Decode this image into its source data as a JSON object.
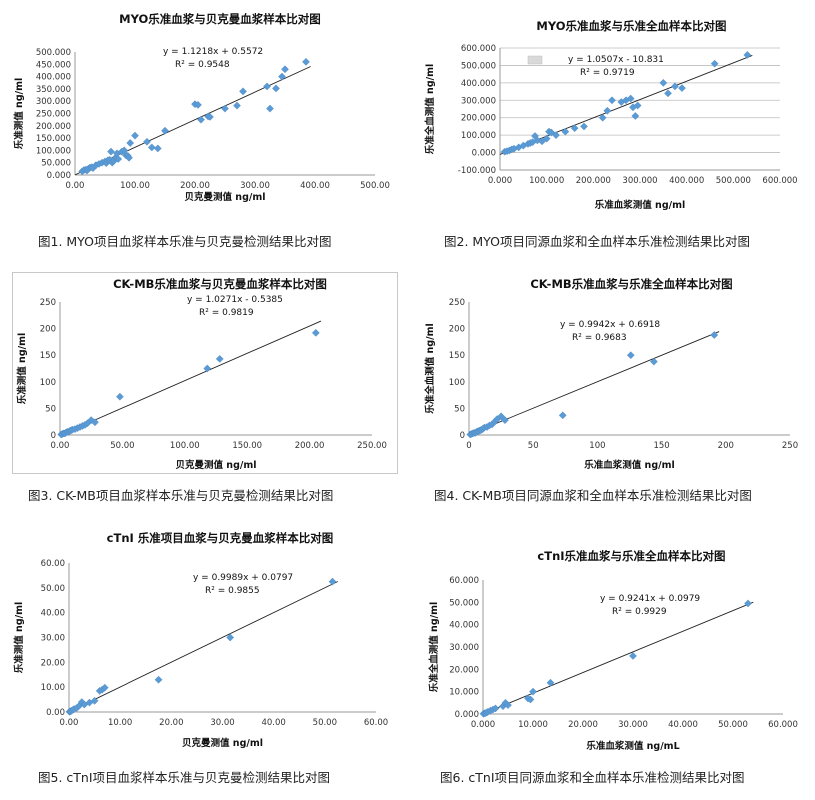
{
  "charts": [
    {
      "id": "c1",
      "title": "MYO乐准血浆与贝克曼血浆样本比对图",
      "xlabel": "贝克曼测值 ng/ml",
      "ylabel": "乐准测值 ng/ml",
      "equation": "y = 1.1218x + 0.5572",
      "r2": "R² = 0.9548",
      "caption": "图1. MYO项目血浆样本乐准与贝克曼检测结果比对图"
    },
    {
      "id": "c2",
      "title": "MYO乐准血浆与乐准全血样本比对图",
      "xlabel": "乐准血浆测值 ng/ml",
      "ylabel": "乐准全血测值 ng/ml",
      "equation": "y = 1.0507x - 10.831",
      "r2": "R² = 0.9719",
      "legend_marker": "",
      "caption": "图2. MYO项目同源血浆和全血样本乐准检测结果比对图"
    },
    {
      "id": "c3",
      "title": "CK-MB乐准血浆与贝克曼血浆样本比对图",
      "xlabel": "贝克曼测值 ng/ml",
      "ylabel": "乐准测值 ng/ml",
      "equation": "y = 1.0271x - 0.5385",
      "r2": "R² = 0.9819",
      "caption": "图3. CK-MB项目血浆样本乐准与贝克曼检测结果比对图"
    },
    {
      "id": "c4",
      "title": "CK-MB乐准血浆与乐准全血样本比对图",
      "xlabel": "乐准血浆测值 ng/ml",
      "ylabel": "乐准全血测值 ng/ml",
      "equation": "y = 0.9942x + 0.6918",
      "r2": "R² = 0.9683",
      "caption": "图4. CK-MB项目同源血浆和全血样本乐准检测结果比对图"
    },
    {
      "id": "c5",
      "title": "cTnI 乐准项目血浆与贝克曼血浆样本比对图",
      "xlabel": "贝克曼测值 ng/ml",
      "ylabel": "乐准测值 ng/ml",
      "equation": "y = 0.9989x + 0.0797",
      "r2": "R² = 0.9855",
      "caption": "图5. cTnI项目血浆样本乐准与贝克曼检测结果比对图"
    },
    {
      "id": "c6",
      "title": "cTnI乐准血浆与乐准全血样本比对图",
      "xlabel": "乐准血浆测值 ng/mL",
      "ylabel": "乐准全血测值 ng/ml",
      "equation": "y = 0.9241x + 0.0979",
      "r2": "R² = 0.9929",
      "caption": "图6. cTnI项目同源血浆和全血样本乐准检测结果比对图"
    }
  ],
  "chart_data": [
    {
      "type": "scatter",
      "title": "MYO乐准血浆与贝克曼血浆样本比对图",
      "xlabel": "贝克曼测值 ng/ml",
      "ylabel": "乐准测值 ng/ml",
      "xlim": [
        0,
        500
      ],
      "ylim": [
        0,
        500
      ],
      "xticks": [
        "0.00",
        "100.00",
        "200.00",
        "300.00",
        "400.00",
        "500.00"
      ],
      "yticks": [
        "0.000",
        "50.000",
        "100.000",
        "150.000",
        "200.000",
        "250.000",
        "300.000",
        "350.000",
        "400.000",
        "450.000",
        "500.000"
      ],
      "grid": false,
      "trendline": {
        "slope": 1.1218,
        "intercept": 0.5572
      },
      "points": [
        [
          12,
          15
        ],
        [
          15,
          20
        ],
        [
          18,
          22
        ],
        [
          20,
          18
        ],
        [
          22,
          25
        ],
        [
          25,
          30
        ],
        [
          28,
          32
        ],
        [
          30,
          28
        ],
        [
          35,
          40
        ],
        [
          40,
          45
        ],
        [
          45,
          50
        ],
        [
          50,
          55
        ],
        [
          52,
          48
        ],
        [
          55,
          60
        ],
        [
          58,
          62
        ],
        [
          60,
          95
        ],
        [
          62,
          50
        ],
        [
          65,
          58
        ],
        [
          68,
          72
        ],
        [
          70,
          88
        ],
        [
          72,
          65
        ],
        [
          78,
          95
        ],
        [
          82,
          100
        ],
        [
          85,
          80
        ],
        [
          88,
          78
        ],
        [
          90,
          70
        ],
        [
          92,
          130
        ],
        [
          100,
          160
        ],
        [
          120,
          135
        ],
        [
          128,
          112
        ],
        [
          138,
          108
        ],
        [
          150,
          180
        ],
        [
          200,
          288
        ],
        [
          205,
          285
        ],
        [
          210,
          225
        ],
        [
          222,
          238
        ],
        [
          225,
          236
        ],
        [
          250,
          270
        ],
        [
          270,
          282
        ],
        [
          280,
          340
        ],
        [
          320,
          360
        ],
        [
          325,
          270
        ],
        [
          335,
          352
        ],
        [
          345,
          400
        ],
        [
          350,
          430
        ],
        [
          385,
          460
        ]
      ]
    },
    {
      "type": "scatter",
      "title": "MYO乐准血浆与乐准全血样本比对图",
      "xlabel": "乐准血浆测值 ng/ml",
      "ylabel": "乐准全血测值 ng/ml",
      "xlim": [
        0,
        600
      ],
      "ylim": [
        -100,
        600
      ],
      "xticks": [
        "0.000",
        "100.000",
        "200.000",
        "300.000",
        "400.000",
        "500.000",
        "600.000"
      ],
      "yticks": [
        "-100.000",
        "0.000",
        "100.000",
        "200.000",
        "300.000",
        "400.000",
        "500.000",
        "600.000"
      ],
      "grid": true,
      "trendline": {
        "slope": 1.0507,
        "intercept": -10.831
      },
      "points": [
        [
          10,
          5
        ],
        [
          15,
          8
        ],
        [
          20,
          12
        ],
        [
          25,
          18
        ],
        [
          30,
          22
        ],
        [
          40,
          30
        ],
        [
          50,
          40
        ],
        [
          60,
          50
        ],
        [
          65,
          55
        ],
        [
          70,
          60
        ],
        [
          75,
          95
        ],
        [
          80,
          70
        ],
        [
          90,
          65
        ],
        [
          100,
          80
        ],
        [
          105,
          120
        ],
        [
          110,
          115
        ],
        [
          120,
          100
        ],
        [
          140,
          120
        ],
        [
          160,
          140
        ],
        [
          180,
          150
        ],
        [
          220,
          200
        ],
        [
          230,
          240
        ],
        [
          240,
          300
        ],
        [
          260,
          290
        ],
        [
          270,
          300
        ],
        [
          280,
          310
        ],
        [
          285,
          260
        ],
        [
          290,
          210
        ],
        [
          295,
          270
        ],
        [
          350,
          400
        ],
        [
          360,
          340
        ],
        [
          375,
          380
        ],
        [
          390,
          370
        ],
        [
          460,
          510
        ],
        [
          530,
          560
        ]
      ]
    },
    {
      "type": "scatter",
      "title": "CK-MB乐准血浆与贝克曼血浆样本比对图",
      "xlabel": "贝克曼测值 ng/ml",
      "ylabel": "乐准测值 ng/ml",
      "xlim": [
        0,
        250
      ],
      "ylim": [
        0,
        250
      ],
      "xticks": [
        "0.00",
        "50.00",
        "100.00",
        "150.00",
        "200.00",
        "250.00"
      ],
      "yticks": [
        "0",
        "50",
        "100",
        "150",
        "200",
        "250"
      ],
      "grid": false,
      "trendline": {
        "slope": 1.0271,
        "intercept": -0.5385
      },
      "points": [
        [
          1,
          1
        ],
        [
          2,
          2
        ],
        [
          3,
          3
        ],
        [
          4,
          3
        ],
        [
          5,
          5
        ],
        [
          6,
          6
        ],
        [
          7,
          6
        ],
        [
          8,
          8
        ],
        [
          9,
          9
        ],
        [
          10,
          10
        ],
        [
          12,
          11
        ],
        [
          14,
          13
        ],
        [
          16,
          15
        ],
        [
          18,
          17
        ],
        [
          20,
          19
        ],
        [
          22,
          22
        ],
        [
          25,
          28
        ],
        [
          28,
          24
        ],
        [
          48,
          72
        ],
        [
          118,
          125
        ],
        [
          128,
          143
        ],
        [
          205,
          192
        ]
      ]
    },
    {
      "type": "scatter",
      "title": "CK-MB乐准血浆与乐准全血样本比对图",
      "xlabel": "乐准血浆测值 ng/ml",
      "ylabel": "乐准全血测值 ng/ml",
      "xlim": [
        0,
        250
      ],
      "ylim": [
        0,
        250
      ],
      "xticks": [
        "0",
        "50",
        "100",
        "150",
        "200",
        "250"
      ],
      "yticks": [
        "0",
        "50",
        "100",
        "150",
        "200",
        "250"
      ],
      "grid": false,
      "trendline": {
        "slope": 0.9942,
        "intercept": 0.6918
      },
      "points": [
        [
          1,
          1
        ],
        [
          2,
          2
        ],
        [
          3,
          3
        ],
        [
          4,
          4
        ],
        [
          5,
          4
        ],
        [
          6,
          6
        ],
        [
          7,
          7
        ],
        [
          8,
          8
        ],
        [
          9,
          9
        ],
        [
          10,
          10
        ],
        [
          11,
          12
        ],
        [
          12,
          14
        ],
        [
          14,
          15
        ],
        [
          16,
          18
        ],
        [
          18,
          20
        ],
        [
          20,
          25
        ],
        [
          22,
          30
        ],
        [
          25,
          35
        ],
        [
          28,
          28
        ],
        [
          73,
          37
        ],
        [
          126,
          150
        ],
        [
          144,
          138
        ],
        [
          191,
          188
        ]
      ]
    },
    {
      "type": "scatter",
      "title": "cTnI 乐准项目血浆与贝克曼血浆样本比对图",
      "xlabel": "贝克曼测值 ng/ml",
      "ylabel": "乐准测值 ng/ml",
      "xlim": [
        0,
        60
      ],
      "ylim": [
        0,
        60
      ],
      "xticks": [
        "0.00",
        "10.00",
        "20.00",
        "30.00",
        "40.00",
        "50.00",
        "60.00"
      ],
      "yticks": [
        "0.00",
        "10.00",
        "20.00",
        "30.00",
        "40.00",
        "50.00",
        "60.00"
      ],
      "grid": false,
      "trendline": {
        "slope": 0.9989,
        "intercept": 0.0797
      },
      "points": [
        [
          0.1,
          0.1
        ],
        [
          0.2,
          0.2
        ],
        [
          0.3,
          0.3
        ],
        [
          0.5,
          0.5
        ],
        [
          0.8,
          0.9
        ],
        [
          1.0,
          1.2
        ],
        [
          1.5,
          1.6
        ],
        [
          2.0,
          2.5
        ],
        [
          2.5,
          4.0
        ],
        [
          3.0,
          3.0
        ],
        [
          4.0,
          3.8
        ],
        [
          5.0,
          4.5
        ],
        [
          6.0,
          8.5
        ],
        [
          6.5,
          9.0
        ],
        [
          7.0,
          9.8
        ],
        [
          17.5,
          13.0
        ],
        [
          31.5,
          30.0
        ],
        [
          51.5,
          52.5
        ]
      ]
    },
    {
      "type": "scatter",
      "title": "cTnI乐准血浆与乐准全血样本比对图",
      "xlabel": "乐准血浆测值 ng/mL",
      "ylabel": "乐准全血测值 ng/ml",
      "xlim": [
        0,
        60
      ],
      "ylim": [
        0,
        60
      ],
      "xticks": [
        "0.000",
        "10.000",
        "20.000",
        "30.000",
        "40.000",
        "50.000",
        "60.000"
      ],
      "yticks": [
        "0.000",
        "10.000",
        "20.000",
        "30.000",
        "40.000",
        "50.000",
        "60.000"
      ],
      "grid": false,
      "trendline": {
        "slope": 0.9241,
        "intercept": 0.0979
      },
      "points": [
        [
          0.1,
          0.1
        ],
        [
          0.3,
          0.3
        ],
        [
          0.5,
          0.4
        ],
        [
          0.8,
          0.7
        ],
        [
          1.0,
          1.0
        ],
        [
          1.5,
          1.5
        ],
        [
          2.0,
          2.0
        ],
        [
          2.5,
          2.5
        ],
        [
          4.0,
          3.5
        ],
        [
          4.5,
          5.0
        ],
        [
          5.0,
          4.0
        ],
        [
          9.0,
          7.0
        ],
        [
          9.5,
          6.5
        ],
        [
          10.0,
          10.0
        ],
        [
          13.5,
          14.0
        ],
        [
          30.0,
          26.0
        ],
        [
          53.0,
          49.5
        ]
      ]
    }
  ]
}
